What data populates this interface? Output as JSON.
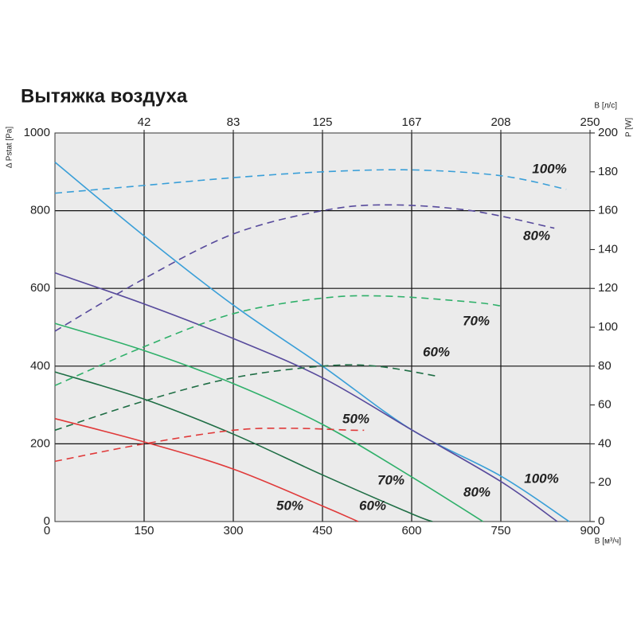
{
  "chart_data": {
    "type": "line",
    "title": "Вытяжка воздуха",
    "y_label": "Δ Pstat [Pa]",
    "y2_label": "P [W]",
    "x_label": "В [м³/ч]",
    "x2_label": "В [л/с]",
    "xlim": [
      0,
      900
    ],
    "xticks": [
      0,
      150,
      300,
      450,
      600,
      750,
      900
    ],
    "x2lim": [
      0,
      250
    ],
    "x2ticks": [
      {
        "value": 41.67,
        "label": "42"
      },
      {
        "value": 83.33,
        "label": "83"
      },
      125,
      {
        "value": 166.67,
        "label": "167"
      },
      {
        "value": 208.33,
        "label": "208"
      },
      250
    ],
    "ylim": [
      0,
      1000
    ],
    "yticks": [
      0,
      200,
      400,
      600,
      800,
      1000
    ],
    "y2lim": [
      0,
      200
    ],
    "y2ticks": [
      0,
      20,
      40,
      60,
      80,
      100,
      120,
      140,
      160,
      180,
      200
    ],
    "grid": true,
    "series": [
      {
        "name": "100%",
        "color": "#3a9fd8",
        "line_style": "solid",
        "x": [
          0,
          150,
          300,
          450,
          600,
          750,
          865
        ],
        "values": [
          925,
          735,
          557,
          400,
          236,
          117,
          0
        ]
      },
      {
        "name": "80%",
        "color": "#574a9c",
        "line_style": "solid",
        "x": [
          0,
          150,
          300,
          450,
          600,
          750,
          845
        ],
        "values": [
          640,
          560,
          471,
          370,
          236,
          103,
          0
        ]
      },
      {
        "name": "70%",
        "color": "#2fb06a",
        "line_style": "solid",
        "x": [
          0,
          150,
          300,
          450,
          600,
          720
        ],
        "values": [
          510,
          440,
          355,
          250,
          115,
          0
        ]
      },
      {
        "name": "60%",
        "color": "#1f6e45",
        "line_style": "solid",
        "x": [
          0,
          150,
          300,
          450,
          600,
          635
        ],
        "values": [
          385,
          315,
          225,
          120,
          20,
          0
        ]
      },
      {
        "name": "50%",
        "color": "#e03a3a",
        "line_style": "solid",
        "x": [
          0,
          150,
          300,
          450,
          510
        ],
        "values": [
          265,
          205,
          135,
          40,
          0
        ]
      },
      {
        "name": "100%",
        "color": "#3a9fd8",
        "line_style": "dashed",
        "axis": "y2",
        "x": [
          0,
          150,
          300,
          450,
          600,
          750,
          860
        ],
        "values": [
          169,
          173,
          177,
          180,
          181,
          178,
          171
        ]
      },
      {
        "name": "80%",
        "color": "#574a9c",
        "line_style": "dashed",
        "axis": "y2",
        "x": [
          0,
          150,
          300,
          450,
          560,
          700,
          840
        ],
        "values": [
          98,
          125,
          148,
          160,
          163,
          160,
          151
        ]
      },
      {
        "name": "70%",
        "color": "#2fb06a",
        "line_style": "dashed",
        "axis": "y2",
        "x": [
          0,
          150,
          300,
          450,
          560,
          700,
          750
        ],
        "values": [
          70,
          90,
          107,
          115,
          116,
          113,
          111
        ]
      },
      {
        "name": "60%",
        "color": "#1f6e45",
        "line_style": "dashed",
        "axis": "y2",
        "x": [
          0,
          150,
          300,
          450,
          540,
          640
        ],
        "values": [
          47,
          62,
          74,
          80,
          80,
          75
        ]
      },
      {
        "name": "50%",
        "color": "#e03a3a",
        "line_style": "dashed",
        "axis": "y2",
        "x": [
          0,
          150,
          300,
          400,
          500,
          520
        ],
        "values": [
          31,
          40,
          47,
          48,
          47,
          47
        ]
      }
    ]
  }
}
